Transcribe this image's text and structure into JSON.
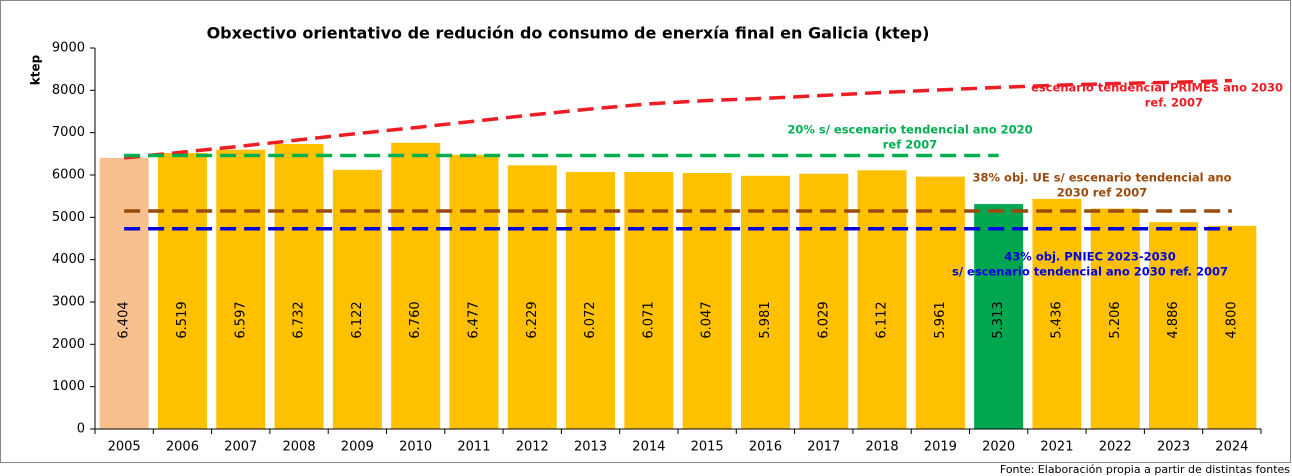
{
  "chart_data": {
    "type": "bar",
    "title": "Obxectivo orientativo de redución do consumo de enerxía final en Galicia (ktep)",
    "y_label": "ktep",
    "source": "Fonte: Elaboración propia a partir de distintas fontes",
    "categories": [
      "2005",
      "2006",
      "2007",
      "2008",
      "2009",
      "2010",
      "2011",
      "2012",
      "2013",
      "2014",
      "2015",
      "2016",
      "2017",
      "2018",
      "2019",
      "2020",
      "2021",
      "2022",
      "2023",
      "2024"
    ],
    "values": [
      6404,
      6519,
      6597,
      6732,
      6122,
      6760,
      6477,
      6229,
      6072,
      6071,
      6047,
      5981,
      6029,
      6112,
      5961,
      5313,
      5436,
      5206,
      4886,
      4800
    ],
    "value_labels": [
      "6.404",
      "6.519",
      "6.597",
      "6.732",
      "6.122",
      "6.760",
      "6.477",
      "6.229",
      "6.072",
      "6.071",
      "6.047",
      "5.981",
      "6.029",
      "6.112",
      "5.961",
      "5.313",
      "5.436",
      "5.206",
      "4.886",
      "4.800"
    ],
    "colors": [
      "#f8c08f",
      "#ffc000",
      "#ffc000",
      "#ffc000",
      "#ffc000",
      "#ffc000",
      "#ffc000",
      "#ffc000",
      "#ffc000",
      "#ffc000",
      "#ffc000",
      "#ffc000",
      "#ffc000",
      "#ffc000",
      "#ffc000",
      "#00a650",
      "#ffc000",
      "#ffc000",
      "#ffc000",
      "#ffc000"
    ],
    "lines": [
      {
        "color": "#ee1c25",
        "label": [
          "escenario tendencial PRIMES ano 2030",
          "ref. 2007"
        ],
        "values": [
          6404,
          6540,
          6680,
          6830,
          6980,
          7120,
          7270,
          7420,
          7560,
          7680,
          7760,
          7810,
          7880,
          7950,
          8010,
          8070,
          8120,
          8160,
          8190,
          8230
        ]
      },
      {
        "color": "#00b050",
        "label": [
          "20% s/ escenario tendencial ano 2020",
          "ref 2007"
        ],
        "values": [
          6460,
          6460,
          6460,
          6460,
          6460,
          6460,
          6460,
          6460,
          6460,
          6460,
          6460,
          6460,
          6460,
          6460,
          6460,
          6460,
          null,
          null,
          null,
          null
        ]
      },
      {
        "color": "#9c4a0c",
        "label": [
          "38% obj. UE s/ escenario tendencial ano",
          "2030 ref 2007"
        ],
        "values": [
          5150,
          5150,
          5150,
          5150,
          5150,
          5150,
          5150,
          5150,
          5150,
          5150,
          5150,
          5150,
          5150,
          5150,
          5150,
          5150,
          5150,
          5150,
          5150,
          5150
        ]
      },
      {
        "color": "#0000e0",
        "label": [
          "43% obj. PNIEC 2023-2030",
          "s/ escenario tendencial ano 2030 ref. 2007"
        ],
        "values": [
          4730,
          4730,
          4730,
          4730,
          4730,
          4730,
          4730,
          4730,
          4730,
          4730,
          4730,
          4730,
          4730,
          4730,
          4730,
          4730,
          4730,
          4730,
          4730,
          4730
        ]
      }
    ],
    "ylim": [
      0,
      9000
    ],
    "yticks": [
      0,
      1000,
      2000,
      3000,
      4000,
      5000,
      6000,
      7000,
      8000,
      9000
    ],
    "grid": false
  }
}
